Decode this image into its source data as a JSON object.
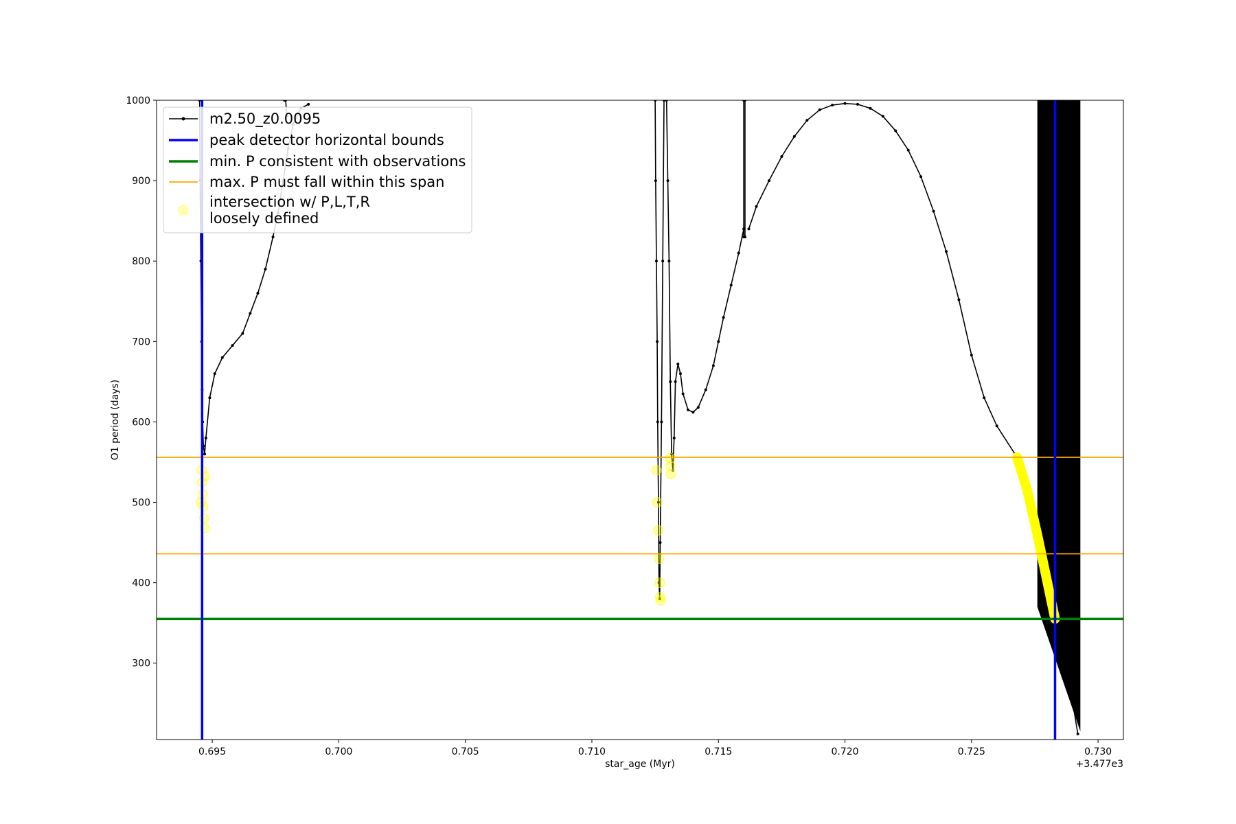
{
  "chart_data": {
    "type": "line",
    "xlabel": "star_age (Myr)",
    "ylabel": "O1 period (days)",
    "x_offset_label": "+3.477e3",
    "xlim": [
      0.6928,
      0.731
    ],
    "ylim": [
      205,
      1000
    ],
    "xticks": [
      {
        "value": 0.695,
        "label": "0.695"
      },
      {
        "value": 0.7,
        "label": "0.700"
      },
      {
        "value": 0.705,
        "label": "0.705"
      },
      {
        "value": 0.71,
        "label": "0.710"
      },
      {
        "value": 0.715,
        "label": "0.715"
      },
      {
        "value": 0.72,
        "label": "0.720"
      },
      {
        "value": 0.725,
        "label": "0.725"
      },
      {
        "value": 0.73,
        "label": "0.730"
      }
    ],
    "yticks": [
      {
        "value": 300,
        "label": "300"
      },
      {
        "value": 400,
        "label": "400"
      },
      {
        "value": 500,
        "label": "500"
      },
      {
        "value": 600,
        "label": "600"
      },
      {
        "value": 700,
        "label": "700"
      },
      {
        "value": 800,
        "label": "800"
      },
      {
        "value": 900,
        "label": "900"
      },
      {
        "value": 1000,
        "label": "1000"
      }
    ],
    "grid": false,
    "legend_position": "top-left",
    "legend": [
      {
        "label": "m2.50_z0.0095",
        "kind": "line-marker",
        "color": "#000000"
      },
      {
        "label": "peak detector horizontal bounds",
        "kind": "line-thick",
        "color": "#0000ff"
      },
      {
        "label": "min. P consistent with observations",
        "kind": "line-thick",
        "color": "#008000"
      },
      {
        "label": "max. P must fall within this span",
        "kind": "line-thin",
        "color": "#ffa500"
      },
      {
        "label": "intersection w/ P,L,T,R\nloosely defined",
        "kind": "circle",
        "color": "#ffff00"
      }
    ],
    "series": [
      {
        "name": "m2.50_z0.0095",
        "color": "#000000",
        "segments": [
          [
            [
              0.6945,
              1000
            ],
            [
              0.69452,
              900
            ],
            [
              0.69455,
              800
            ],
            [
              0.69458,
              700
            ],
            [
              0.6946,
              640
            ],
            [
              0.69462,
              600
            ],
            [
              0.69465,
              570
            ],
            [
              0.6947,
              560
            ],
            [
              0.69475,
              580
            ],
            [
              0.6949,
              630
            ],
            [
              0.6951,
              660
            ],
            [
              0.6954,
              680
            ],
            [
              0.6958,
              695
            ],
            [
              0.6962,
              710
            ],
            [
              0.6965,
              735
            ],
            [
              0.6968,
              760
            ],
            [
              0.6971,
              790
            ],
            [
              0.6974,
              830
            ],
            [
              0.6976,
              860
            ],
            [
              0.6978,
              900
            ],
            [
              0.698,
              940
            ],
            [
              0.6982,
              970
            ],
            [
              0.6985,
              990
            ],
            [
              0.6988,
              995
            ]
          ],
          [
            [
              0.69785,
              1000
            ],
            [
              0.6979,
              1000
            ],
            [
              0.69795,
              980
            ]
          ],
          [
            [
              0.7125,
              1000
            ],
            [
              0.71252,
              900
            ],
            [
              0.71255,
              800
            ],
            [
              0.71258,
              700
            ],
            [
              0.7126,
              600
            ],
            [
              0.71263,
              500
            ],
            [
              0.71265,
              400
            ],
            [
              0.71268,
              380
            ],
            [
              0.7127,
              450
            ],
            [
              0.71275,
              600
            ],
            [
              0.7128,
              800
            ],
            [
              0.71285,
              1000
            ]
          ],
          [
            [
              0.71295,
              1000
            ],
            [
              0.713,
              900
            ],
            [
              0.71305,
              800
            ],
            [
              0.7131,
              650
            ],
            [
              0.71315,
              560
            ],
            [
              0.7132,
              540
            ],
            [
              0.71325,
              580
            ],
            [
              0.7133,
              650
            ],
            [
              0.7134,
              672
            ],
            [
              0.7135,
              660
            ],
            [
              0.7136,
              635
            ],
            [
              0.7138,
              615
            ],
            [
              0.714,
              612
            ],
            [
              0.7142,
              618
            ],
            [
              0.7145,
              640
            ],
            [
              0.7148,
              670
            ],
            [
              0.715,
              700
            ],
            [
              0.7152,
              730
            ],
            [
              0.7155,
              770
            ],
            [
              0.7158,
              810
            ],
            [
              0.716,
              840
            ]
          ],
          [
            [
              0.716,
              830
            ],
            [
              0.716,
              1000
            ],
            [
              0.71605,
              1000
            ],
            [
              0.71605,
              830
            ]
          ],
          [
            [
              0.7162,
              840
            ],
            [
              0.7165,
              868
            ],
            [
              0.717,
              900
            ],
            [
              0.7175,
              930
            ],
            [
              0.718,
              955
            ],
            [
              0.7185,
              975
            ],
            [
              0.719,
              988
            ],
            [
              0.7195,
              994
            ],
            [
              0.72,
              996
            ],
            [
              0.7205,
              995
            ],
            [
              0.721,
              990
            ],
            [
              0.7215,
              980
            ],
            [
              0.722,
              962
            ],
            [
              0.7225,
              938
            ],
            [
              0.723,
              905
            ],
            [
              0.7235,
              862
            ],
            [
              0.724,
              812
            ],
            [
              0.7245,
              752
            ],
            [
              0.725,
              683
            ],
            [
              0.7255,
              630
            ],
            [
              0.726,
              595
            ],
            [
              0.7268,
              556
            ],
            [
              0.7272,
              500
            ],
            [
              0.7276,
              440
            ],
            [
              0.728,
              385
            ],
            [
              0.7283,
              350
            ],
            [
              0.7286,
              310
            ],
            [
              0.7289,
              270
            ],
            [
              0.7292,
              212
            ]
          ]
        ]
      }
    ],
    "dense_band": {
      "x_start": 0.7276,
      "x_end": 0.7293,
      "y_top": 1000,
      "color": "#000000"
    },
    "vertical_lines": [
      {
        "x": 0.6946,
        "color": "#0000ff"
      },
      {
        "x": 0.7283,
        "color": "#0000ff"
      }
    ],
    "horizontal_lines": [
      {
        "y": 556,
        "color": "#ffa500"
      },
      {
        "y": 436,
        "color": "#ffa500"
      },
      {
        "y": 355,
        "color": "#008000"
      }
    ],
    "intersections": {
      "color": "#ffff00",
      "points": [
        [
          0.69458,
          540
        ],
        [
          0.6946,
          525
        ],
        [
          0.69462,
          510
        ],
        [
          0.69465,
          495
        ],
        [
          0.69468,
          480
        ],
        [
          0.6947,
          468
        ],
        [
          0.69455,
          500
        ],
        [
          0.69472,
          532
        ],
        [
          0.71255,
          540
        ],
        [
          0.71258,
          500
        ],
        [
          0.71262,
          465
        ],
        [
          0.71265,
          430
        ],
        [
          0.71268,
          400
        ],
        [
          0.7127,
          382
        ],
        [
          0.71272,
          378
        ],
        [
          0.7131,
          555
        ],
        [
          0.7131,
          545
        ],
        [
          0.71312,
          535
        ]
      ],
      "thick_segment": [
        [
          0.7268,
          556
        ],
        [
          0.7272,
          515
        ],
        [
          0.7276,
          460
        ],
        [
          0.728,
          400
        ],
        [
          0.7283,
          355
        ]
      ]
    }
  }
}
